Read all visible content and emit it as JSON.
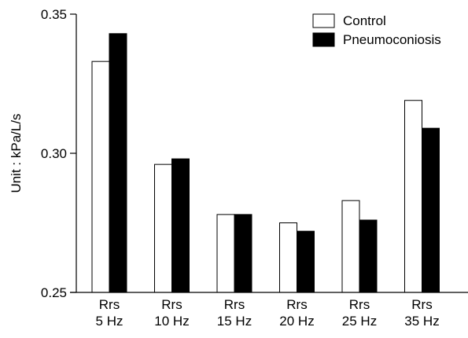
{
  "chart_data": {
    "type": "bar",
    "title": "",
    "xlabel": "",
    "ylabel": "Unit : kPa/L/s",
    "ylim": [
      0.25,
      0.35
    ],
    "yticks": [
      0.25,
      0.3,
      0.35
    ],
    "ytick_labels": [
      "0.25",
      "0.30",
      "0.35"
    ],
    "grid": false,
    "legend_position": "top-right",
    "categories": [
      [
        "Rrs",
        "5 Hz"
      ],
      [
        "Rrs",
        "10 Hz"
      ],
      [
        "Rrs",
        "15 Hz"
      ],
      [
        "Rrs",
        "20 Hz"
      ],
      [
        "Rrs",
        "25 Hz"
      ],
      [
        "Rrs",
        "35 Hz"
      ]
    ],
    "series": [
      {
        "name": "Control",
        "color": "#ffffff",
        "values": [
          0.333,
          0.296,
          0.278,
          0.275,
          0.283,
          0.319
        ]
      },
      {
        "name": "Pneumoconiosis",
        "color": "#000000",
        "values": [
          0.343,
          0.298,
          0.278,
          0.272,
          0.276,
          0.309
        ]
      }
    ]
  }
}
